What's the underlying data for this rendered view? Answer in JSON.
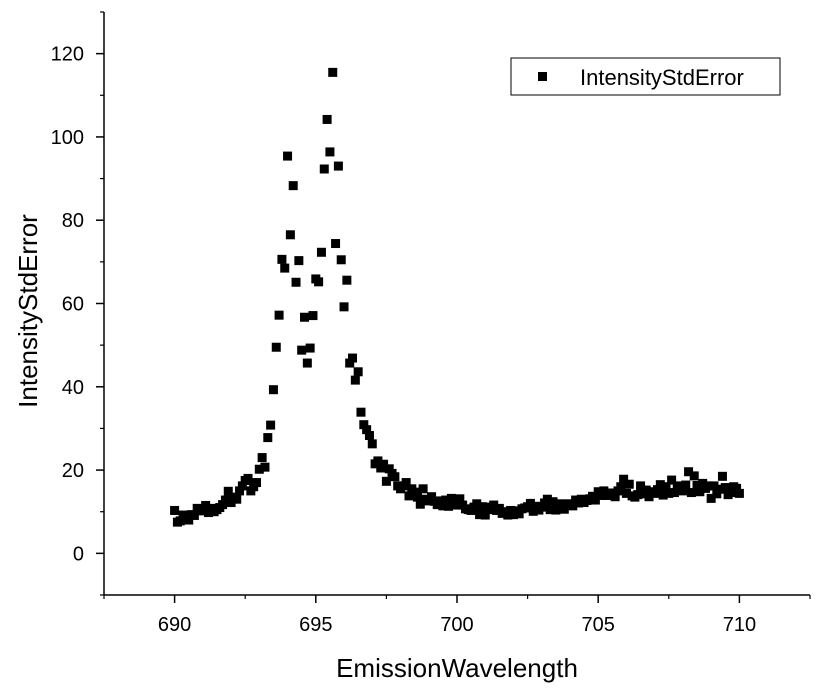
{
  "chart_data": {
    "type": "scatter",
    "xlabel": "EmissionWavelength",
    "ylabel": "IntensityStdError",
    "xlim": [
      687.5,
      712.5
    ],
    "ylim": [
      -10,
      130
    ],
    "xticks": [
      "690",
      "695",
      "700",
      "705",
      "710"
    ],
    "yticks": [
      "0",
      "20",
      "40",
      "60",
      "80",
      "100",
      "120"
    ],
    "grid": false,
    "legend_position": "top-right",
    "marker": "square",
    "colors": {
      "marker": "#000000",
      "axis": "#000000"
    },
    "series": [
      {
        "name": "IntensityStdError",
        "points": [
          [
            690.0,
            10.3
          ],
          [
            690.1,
            7.5
          ],
          [
            690.2,
            7.8
          ],
          [
            690.3,
            9.2
          ],
          [
            690.4,
            9.0
          ],
          [
            690.5,
            8.0
          ],
          [
            690.6,
            9.3
          ],
          [
            690.7,
            9.1
          ],
          [
            690.8,
            10.8
          ],
          [
            690.9,
            10.2
          ],
          [
            691.0,
            10.6
          ],
          [
            691.1,
            11.5
          ],
          [
            691.2,
            9.8
          ],
          [
            691.3,
            10.8
          ],
          [
            691.4,
            10.0
          ],
          [
            691.5,
            10.5
          ],
          [
            691.6,
            11.0
          ],
          [
            691.7,
            11.7
          ],
          [
            691.8,
            12.8
          ],
          [
            691.9,
            14.9
          ],
          [
            692.0,
            12.2
          ],
          [
            692.1,
            13.5
          ],
          [
            692.2,
            13.0
          ],
          [
            692.3,
            15.0
          ],
          [
            692.4,
            16.2
          ],
          [
            692.5,
            17.5
          ],
          [
            692.6,
            18.0
          ],
          [
            692.7,
            15.0
          ],
          [
            692.8,
            16.0
          ],
          [
            692.9,
            17.0
          ],
          [
            693.0,
            20.2
          ],
          [
            693.1,
            23.0
          ],
          [
            693.2,
            20.7
          ],
          [
            693.3,
            27.8
          ],
          [
            693.4,
            30.8
          ],
          [
            693.5,
            39.3
          ],
          [
            693.6,
            49.5
          ],
          [
            693.7,
            57.2
          ],
          [
            693.8,
            70.6
          ],
          [
            693.9,
            68.5
          ],
          [
            694.0,
            95.4
          ],
          [
            694.1,
            76.5
          ],
          [
            694.2,
            88.3
          ],
          [
            694.3,
            65.1
          ],
          [
            694.4,
            70.3
          ],
          [
            694.5,
            48.8
          ],
          [
            694.6,
            56.7
          ],
          [
            694.7,
            45.7
          ],
          [
            694.8,
            49.3
          ],
          [
            694.9,
            57.1
          ],
          [
            695.0,
            65.9
          ],
          [
            695.1,
            65.2
          ],
          [
            695.2,
            72.3
          ],
          [
            695.3,
            92.3
          ],
          [
            695.4,
            104.2
          ],
          [
            695.5,
            96.4
          ],
          [
            695.6,
            115.5
          ],
          [
            695.7,
            74.4
          ],
          [
            695.8,
            93.0
          ],
          [
            695.9,
            70.5
          ],
          [
            696.0,
            59.2
          ],
          [
            696.1,
            65.6
          ],
          [
            696.2,
            45.7
          ],
          [
            696.3,
            46.9
          ],
          [
            696.4,
            41.6
          ],
          [
            696.5,
            43.6
          ],
          [
            696.6,
            33.9
          ],
          [
            696.7,
            30.9
          ],
          [
            696.8,
            29.7
          ],
          [
            696.9,
            28.3
          ],
          [
            697.0,
            26.3
          ],
          [
            697.1,
            21.5
          ],
          [
            697.2,
            22.2
          ],
          [
            697.3,
            20.5
          ],
          [
            697.4,
            21.4
          ],
          [
            697.5,
            17.3
          ],
          [
            697.6,
            20.3
          ],
          [
            697.7,
            19.2
          ],
          [
            697.8,
            18.4
          ],
          [
            697.9,
            16.2
          ],
          [
            698.0,
            15.5
          ],
          [
            698.1,
            16.2
          ],
          [
            698.2,
            17.0
          ],
          [
            698.3,
            13.8
          ],
          [
            698.4,
            15.5
          ],
          [
            698.5,
            14.7
          ],
          [
            698.6,
            13.5
          ],
          [
            698.7,
            11.8
          ],
          [
            698.8,
            15.5
          ],
          [
            698.9,
            13.0
          ],
          [
            699.0,
            12.6
          ],
          [
            699.1,
            13.6
          ],
          [
            699.2,
            12.5
          ],
          [
            699.3,
            11.7
          ],
          [
            699.4,
            12.6
          ],
          [
            699.5,
            11.4
          ],
          [
            699.6,
            12.8
          ],
          [
            699.7,
            11.3
          ],
          [
            699.8,
            13.2
          ],
          [
            699.9,
            12.1
          ],
          [
            700.0,
            11.6
          ],
          [
            700.1,
            13.1
          ],
          [
            700.2,
            11.6
          ],
          [
            700.3,
            10.7
          ],
          [
            700.4,
            10.5
          ],
          [
            700.5,
            10.3
          ],
          [
            700.6,
            11.1
          ],
          [
            700.7,
            11.9
          ],
          [
            700.8,
            9.3
          ],
          [
            700.9,
            11.2
          ],
          [
            701.0,
            9.2
          ],
          [
            701.1,
            10.5
          ],
          [
            701.2,
            11.1
          ],
          [
            701.3,
            11.6
          ],
          [
            701.4,
            10.3
          ],
          [
            701.5,
            10.8
          ],
          [
            701.6,
            9.6
          ],
          [
            701.7,
            10.0
          ],
          [
            701.8,
            9.2
          ],
          [
            701.9,
            10.3
          ],
          [
            702.0,
            9.3
          ],
          [
            702.1,
            10.2
          ],
          [
            702.2,
            9.5
          ],
          [
            702.3,
            10.7
          ],
          [
            702.4,
            10.9
          ],
          [
            702.5,
            11.2
          ],
          [
            702.6,
            12.0
          ],
          [
            702.7,
            10.1
          ],
          [
            702.8,
            11.3
          ],
          [
            702.9,
            10.4
          ],
          [
            703.0,
            11.1
          ],
          [
            703.1,
            12.1
          ],
          [
            703.2,
            13.0
          ],
          [
            703.3,
            10.5
          ],
          [
            703.4,
            12.4
          ],
          [
            703.5,
            10.4
          ],
          [
            703.6,
            11.9
          ],
          [
            703.7,
            11.5
          ],
          [
            703.8,
            10.6
          ],
          [
            703.9,
            11.9
          ],
          [
            704.0,
            11.8
          ],
          [
            704.1,
            11.4
          ],
          [
            704.2,
            12.8
          ],
          [
            704.3,
            12.1
          ],
          [
            704.4,
            13.0
          ],
          [
            704.5,
            12.2
          ],
          [
            704.6,
            12.7
          ],
          [
            704.7,
            13.1
          ],
          [
            704.8,
            13.7
          ],
          [
            704.9,
            12.8
          ],
          [
            705.0,
            14.8
          ],
          [
            705.1,
            13.9
          ],
          [
            705.2,
            15.0
          ],
          [
            705.3,
            13.9
          ],
          [
            705.4,
            14.3
          ],
          [
            705.5,
            14.5
          ],
          [
            705.6,
            13.6
          ],
          [
            705.7,
            15.0
          ],
          [
            705.8,
            16.0
          ],
          [
            705.9,
            17.8
          ],
          [
            706.0,
            14.4
          ],
          [
            706.1,
            16.6
          ],
          [
            706.2,
            13.8
          ],
          [
            706.3,
            13.5
          ],
          [
            706.4,
            14.1
          ],
          [
            706.5,
            16.2
          ],
          [
            706.6,
            14.3
          ],
          [
            706.7,
            15.2
          ],
          [
            706.8,
            13.6
          ],
          [
            706.9,
            14.8
          ],
          [
            707.0,
            14.4
          ],
          [
            707.1,
            15.3
          ],
          [
            707.2,
            16.5
          ],
          [
            707.3,
            14.0
          ],
          [
            707.4,
            16.0
          ],
          [
            707.5,
            14.4
          ],
          [
            707.6,
            17.6
          ],
          [
            707.7,
            14.6
          ],
          [
            707.8,
            16.2
          ],
          [
            707.9,
            15.2
          ],
          [
            708.0,
            15.0
          ],
          [
            708.1,
            16.4
          ],
          [
            708.2,
            19.6
          ],
          [
            708.3,
            14.6
          ],
          [
            708.4,
            18.6
          ],
          [
            708.5,
            16.3
          ],
          [
            708.6,
            14.8
          ],
          [
            708.7,
            16.8
          ],
          [
            708.8,
            15.6
          ],
          [
            708.9,
            16.2
          ],
          [
            709.0,
            13.2
          ],
          [
            709.1,
            16.2
          ],
          [
            709.2,
            14.3
          ],
          [
            709.3,
            15.4
          ],
          [
            709.4,
            18.5
          ],
          [
            709.5,
            15.8
          ],
          [
            709.6,
            14.1
          ],
          [
            709.7,
            14.6
          ],
          [
            709.8,
            16.0
          ],
          [
            709.9,
            15.6
          ],
          [
            710.0,
            14.4
          ]
        ]
      }
    ]
  }
}
